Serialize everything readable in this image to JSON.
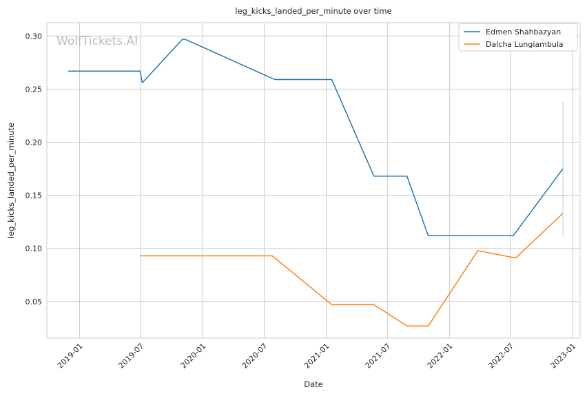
{
  "chart_data": {
    "type": "line",
    "title": "leg_kicks_landed_per_minute over time",
    "xlabel": "Date",
    "ylabel": "leg_kicks_landed_per_minute",
    "watermark": "WolfTickets.AI",
    "x_ticks": [
      "2019-01",
      "2019-07",
      "2020-01",
      "2020-07",
      "2021-01",
      "2021-07",
      "2022-01",
      "2022-07",
      "2023-01"
    ],
    "y_ticks": [
      0.05,
      0.1,
      0.15,
      0.2,
      0.25,
      0.3
    ],
    "y_tick_labels": [
      "0.05",
      "0.10",
      "0.15",
      "0.20",
      "0.25",
      "0.30"
    ],
    "xlim": [
      "2018-09-26",
      "2023-01-23"
    ],
    "ylim": [
      0.0155,
      0.3125
    ],
    "grid": true,
    "legend_position": "top-right",
    "series": [
      {
        "name": "Edmen Shahbazyan",
        "color": "#1f77b4",
        "points": [
          {
            "x": "2018-11-28",
            "y": 0.267
          },
          {
            "x": "2019-06-29",
            "y": 0.267
          },
          {
            "x": "2019-07-06",
            "y": 0.256
          },
          {
            "x": "2019-11-02",
            "y": 0.297
          },
          {
            "x": "2019-11-09",
            "y": 0.297
          },
          {
            "x": "2020-08-01",
            "y": 0.259
          },
          {
            "x": "2021-01-17",
            "y": 0.259
          },
          {
            "x": "2021-05-22",
            "y": 0.168
          },
          {
            "x": "2021-08-28",
            "y": 0.168
          },
          {
            "x": "2021-10-30",
            "y": 0.112
          },
          {
            "x": "2022-07-09",
            "y": 0.112
          },
          {
            "x": "2022-12-03",
            "y": 0.175
          }
        ],
        "band": {
          "x": "2022-12-03",
          "low": 0.112,
          "high": 0.238
        }
      },
      {
        "name": "Dalcha Lungiambula",
        "color": "#ff7f0e",
        "points": [
          {
            "x": "2019-06-29",
            "y": 0.093
          },
          {
            "x": "2020-07-25",
            "y": 0.093
          },
          {
            "x": "2021-01-17",
            "y": 0.047
          },
          {
            "x": "2021-05-22",
            "y": 0.047
          },
          {
            "x": "2021-08-28",
            "y": 0.027
          },
          {
            "x": "2021-10-30",
            "y": 0.027
          },
          {
            "x": "2022-03-26",
            "y": 0.098
          },
          {
            "x": "2022-07-16",
            "y": 0.091
          },
          {
            "x": "2022-12-03",
            "y": 0.133
          }
        ]
      }
    ]
  }
}
